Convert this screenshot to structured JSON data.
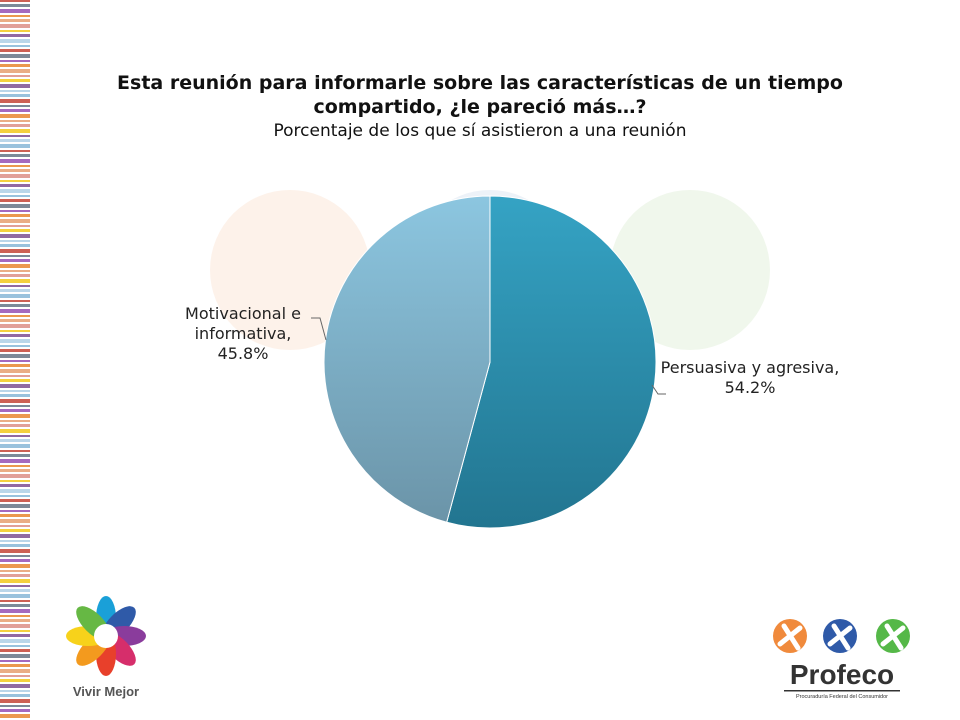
{
  "chart_data": {
    "type": "pie",
    "title": "Esta reunión para informarle sobre las características de un tiempo compartido, ¿le pareció más…?",
    "subtitle": "Porcentaje de los que sí asistieron a una reunión",
    "slices": [
      {
        "label": "Persuasiva y agresiva, 54.2%",
        "value": 54.2,
        "color": "#2b8fb0"
      },
      {
        "label": "Motivacional e informativa, 45.8%",
        "value": 45.8,
        "color": "#80b6cf"
      }
    ],
    "start_angle": "12 o'clock, clockwise",
    "legend": "none (data labels)"
  },
  "logos": {
    "left": {
      "text": "Vivir Mejor",
      "icon": "flower-logo-icon"
    },
    "right": {
      "text": "Profeco",
      "subtext": "Procuraduría Federal del Consumidor",
      "icon": "profeco-figures-icon"
    }
  }
}
